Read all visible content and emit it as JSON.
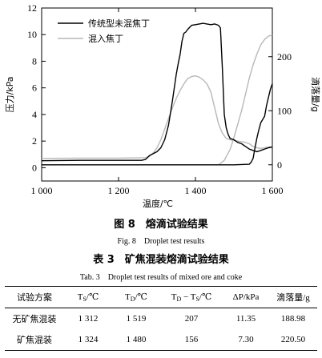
{
  "figure": {
    "caption_cn": "图 8　熔滴试验结果",
    "caption_en": "Fig. 8　Droplet test results"
  },
  "chart_data": {
    "type": "line",
    "xlabel": "温度/℃",
    "ylabel_left": "压力/kPa",
    "ylabel_right": "滴落量/g",
    "xlim": [
      1000,
      1600
    ],
    "ylim_left": [
      -1,
      12
    ],
    "ylim_right": [
      -30,
      290
    ],
    "x_ticks": [
      1000,
      1200,
      1400,
      1600
    ],
    "x_tick_labels": [
      "1 000",
      "1 200",
      "1 400",
      "1 600"
    ],
    "y_left_ticks": [
      0,
      2,
      4,
      6,
      8,
      10,
      12
    ],
    "y_right_ticks": [
      0,
      100,
      200
    ],
    "legend": [
      "传统型未混焦丁",
      "混入焦丁"
    ],
    "legend_position": "top-left",
    "colors": {
      "traditional": "#000000",
      "mixed": "#b8b8b8"
    },
    "series": [
      {
        "name": "传统型未混焦丁",
        "axis": "left",
        "kind": "pressure",
        "x": [
          1000,
          1100,
          1200,
          1260,
          1270,
          1275,
          1280,
          1290,
          1300,
          1310,
          1320,
          1330,
          1340,
          1350,
          1355,
          1360,
          1365,
          1370,
          1375,
          1380,
          1390,
          1400,
          1410,
          1420,
          1440,
          1450,
          1460,
          1465,
          1470,
          1475,
          1480,
          1485,
          1490,
          1500,
          1510,
          1520,
          1530,
          1540,
          1550,
          1560,
          1570,
          1580,
          1590,
          1600
        ],
        "y": [
          0.52,
          0.55,
          0.55,
          0.55,
          0.62,
          0.75,
          0.9,
          1.05,
          1.2,
          1.5,
          2.1,
          3.2,
          5.0,
          7.0,
          7.8,
          8.5,
          9.5,
          10.1,
          10.2,
          10.4,
          10.7,
          10.75,
          10.8,
          10.85,
          10.75,
          10.8,
          10.7,
          10.5,
          7.5,
          4.0,
          3.0,
          2.5,
          2.2,
          2.1,
          1.9,
          1.8,
          1.6,
          1.4,
          1.3,
          1.2,
          1.3,
          1.4,
          1.5,
          1.55
        ]
      },
      {
        "name": "混入焦丁",
        "axis": "left",
        "kind": "pressure",
        "x": [
          1000,
          1100,
          1200,
          1270,
          1280,
          1290,
          1300,
          1310,
          1320,
          1330,
          1340,
          1350,
          1360,
          1370,
          1380,
          1390,
          1400,
          1410,
          1420,
          1430,
          1440,
          1450,
          1460,
          1470,
          1480,
          1490,
          1500,
          1510,
          1520,
          1530,
          1540,
          1550,
          1560,
          1570,
          1580,
          1590,
          1600
        ],
        "y": [
          0.7,
          0.72,
          0.72,
          0.75,
          0.85,
          1.1,
          1.5,
          2.1,
          2.9,
          3.7,
          4.5,
          5.2,
          5.8,
          6.3,
          6.7,
          6.85,
          6.9,
          6.8,
          6.6,
          6.3,
          5.7,
          4.5,
          3.3,
          2.6,
          2.2,
          2.1,
          2.05,
          2.0,
          1.95,
          1.9,
          1.8,
          1.6,
          1.5,
          1.45,
          1.5,
          1.55,
          1.6
        ]
      },
      {
        "name": "传统型未混焦丁",
        "axis": "right",
        "kind": "dripping",
        "x": [
          1000,
          1100,
          1200,
          1300,
          1400,
          1500,
          1540,
          1545,
          1550,
          1555,
          1560,
          1565,
          1570,
          1575,
          1580,
          1585,
          1590,
          1595,
          1600
        ],
        "y": [
          0,
          0,
          0,
          0,
          0,
          0,
          1,
          5,
          12,
          32,
          50,
          65,
          78,
          84,
          90,
          110,
          125,
          140,
          150
        ]
      },
      {
        "name": "混入焦丁",
        "axis": "right",
        "kind": "dripping",
        "x": [
          1000,
          1100,
          1200,
          1300,
          1400,
          1460,
          1475,
          1480,
          1490,
          1500,
          1510,
          1520,
          1530,
          1540,
          1550,
          1560,
          1570,
          1580,
          1590,
          1600
        ],
        "y": [
          0,
          0,
          0,
          0,
          0,
          0,
          8,
          15,
          28,
          50,
          75,
          100,
          130,
          160,
          185,
          205,
          222,
          232,
          238,
          240
        ]
      }
    ]
  },
  "table": {
    "caption_cn": "表 3　矿焦混装熔滴试验结果",
    "caption_en": "Tab. 3　Droplet test results of mixed ore and coke",
    "header": {
      "c0": "试验方案",
      "c1_main": "T",
      "c1_sub": "S",
      "c1_unit": "/℃",
      "c2_main": "T",
      "c2_sub": "D",
      "c2_unit": "/℃",
      "c3_a": "T",
      "c3_a_sub": "D",
      "c3_mid": " − T",
      "c3_b_sub": "S",
      "c3_unit": "/℃",
      "c4": "ΔP/kPa",
      "c5": "滴落量/g"
    },
    "rows": [
      {
        "scheme": "无矿焦混装",
        "ts": "1 312",
        "td": "1 519",
        "diff": "207",
        "dp": "11.35",
        "drip": "188.98"
      },
      {
        "scheme": "矿焦混装",
        "ts": "1 324",
        "td": "1 480",
        "diff": "156",
        "dp": "7.30",
        "drip": "220.50"
      }
    ]
  }
}
